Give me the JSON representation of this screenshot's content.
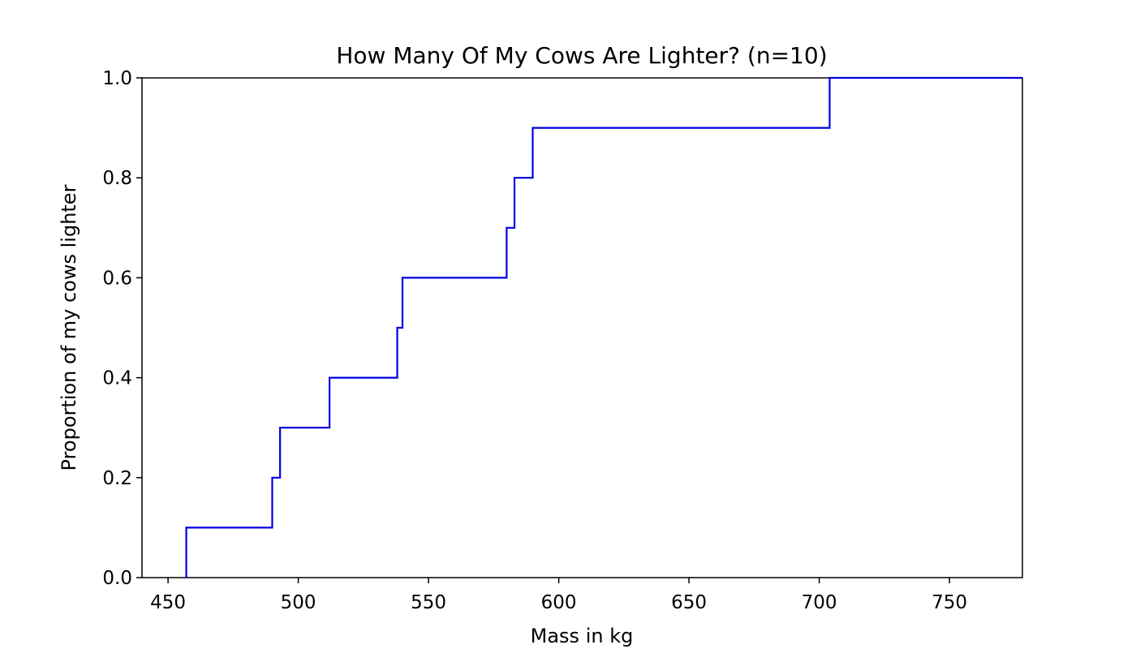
{
  "chart_data": {
    "type": "line",
    "style": "step",
    "title": "How Many Of My Cows Are Lighter? (n=10)",
    "xlabel": "Mass in kg",
    "ylabel": "Proportion of my cows lighter",
    "xlim": [
      440,
      778
    ],
    "ylim": [
      0.0,
      1.0
    ],
    "xticks": [
      "450",
      "500",
      "550",
      "600",
      "650",
      "700",
      "750"
    ],
    "yticks": [
      "0.0",
      "0.2",
      "0.4",
      "0.6",
      "0.8",
      "1.0"
    ],
    "grid": false,
    "legend": "none",
    "series": [
      {
        "color": "#0000e0",
        "x": [
          457,
          490,
          493,
          512,
          538,
          540,
          580,
          583,
          590,
          704,
          778
        ],
        "y": [
          0.1,
          0.2,
          0.3,
          0.4,
          0.5,
          0.6,
          0.7,
          0.8,
          0.9,
          1.0,
          1.0
        ]
      }
    ]
  }
}
